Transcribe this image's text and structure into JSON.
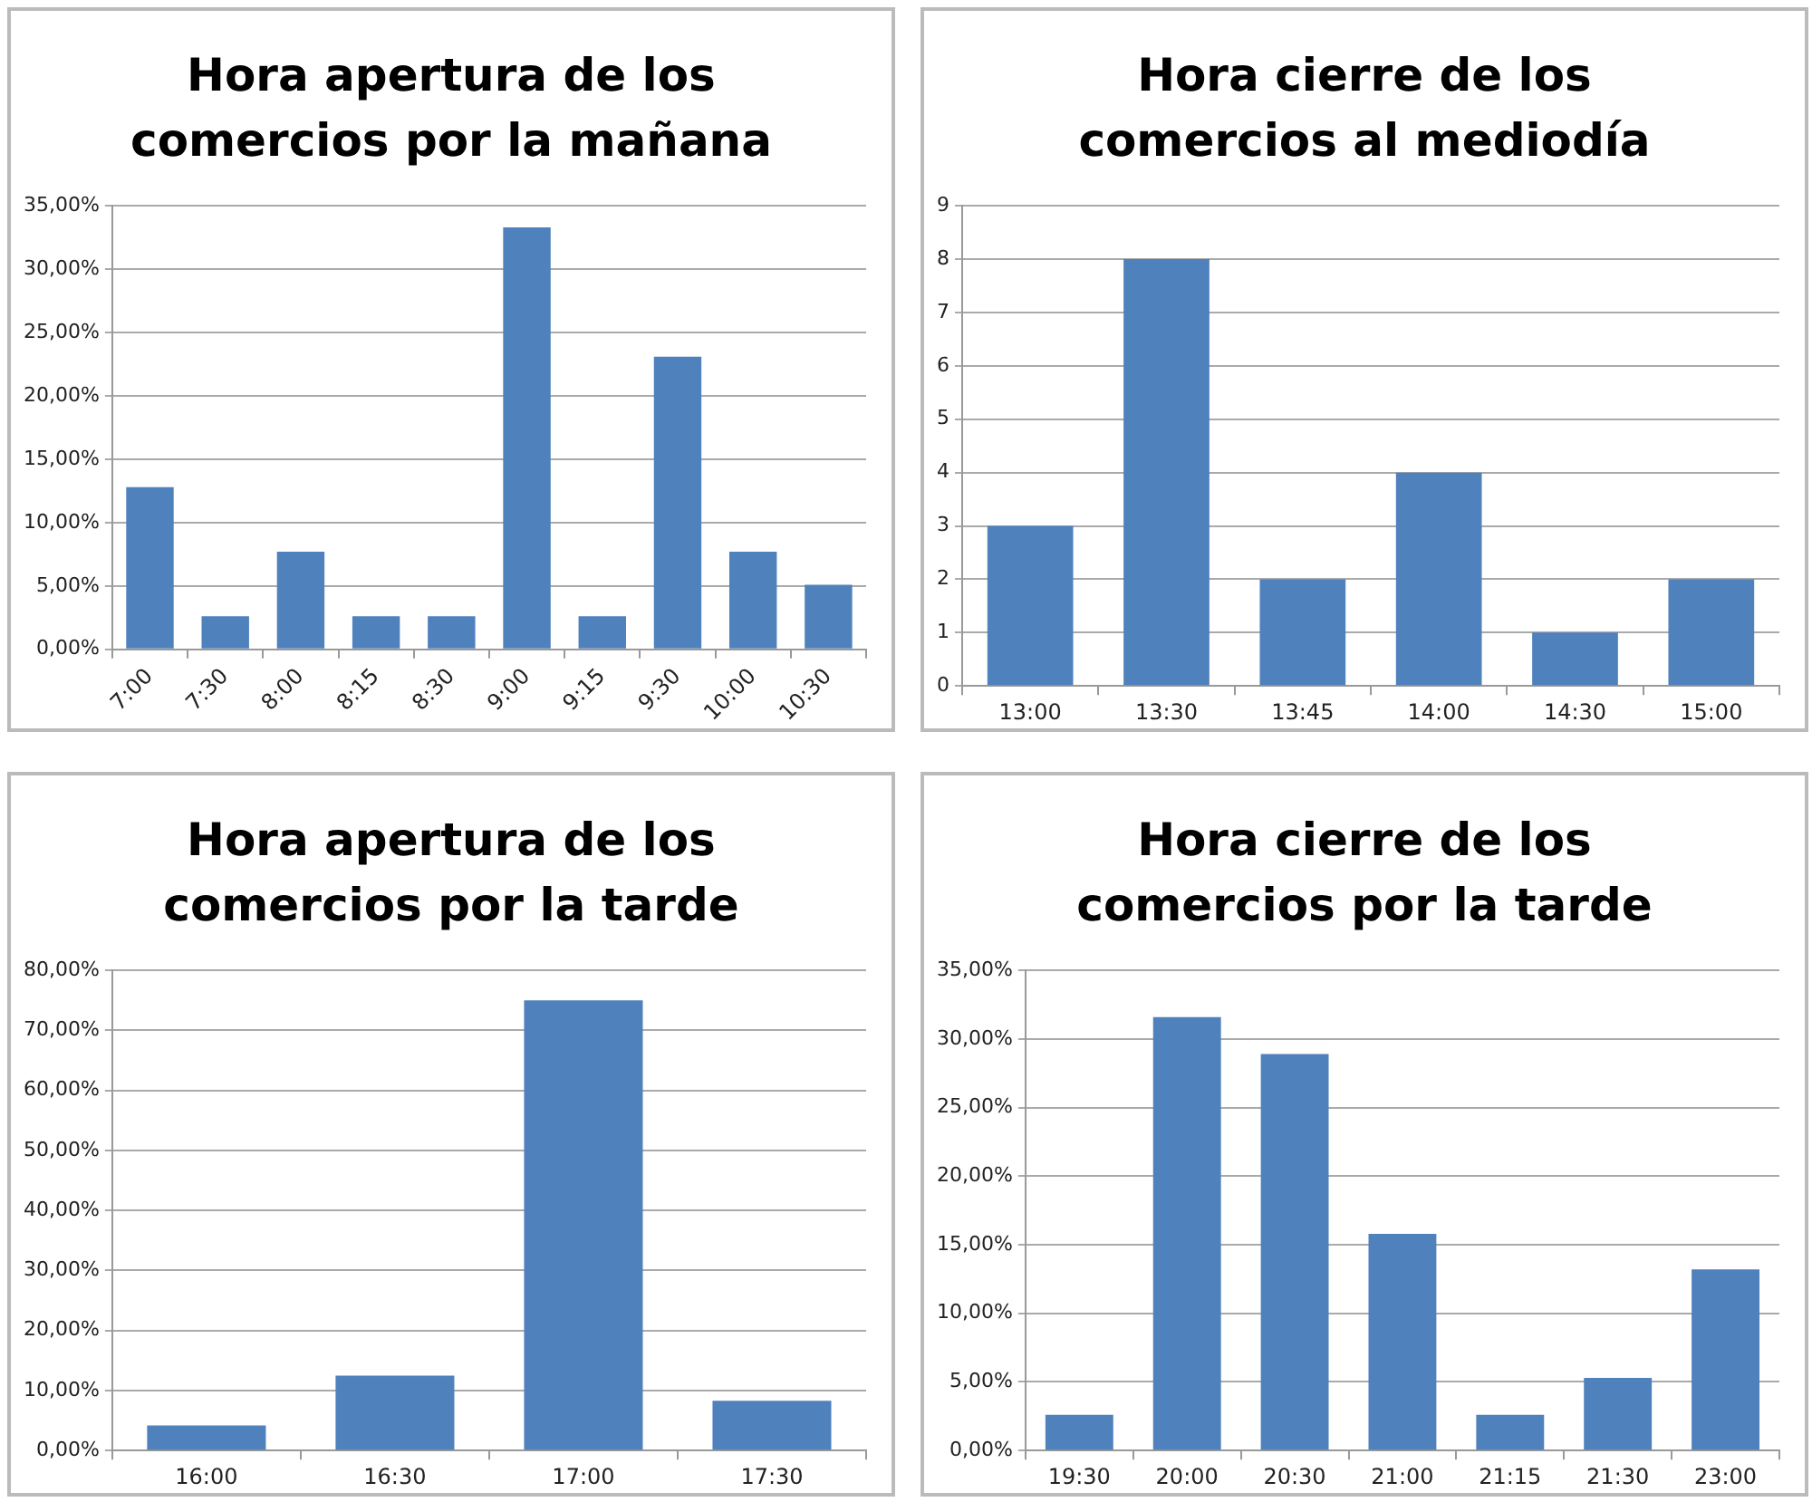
{
  "chart_data": [
    {
      "type": "bar",
      "title": "Hora apertura de los comercios por la mañana",
      "categories": [
        "7:00",
        "7:30",
        "8:00",
        "8:15",
        "8:30",
        "9:00",
        "9:15",
        "9:30",
        "10:00",
        "10:30"
      ],
      "values": [
        12.8,
        2.6,
        7.7,
        2.6,
        2.6,
        33.3,
        2.6,
        23.1,
        7.7,
        5.1
      ],
      "color": "#4f81bd",
      "ylim": [
        0,
        35
      ],
      "yticks": [
        {
          "value": 0,
          "label": "0,00%"
        },
        {
          "value": 5,
          "label": "5,00%"
        },
        {
          "value": 10,
          "label": "10,00%"
        },
        {
          "value": 15,
          "label": "15,00%"
        },
        {
          "value": 20,
          "label": "20,00%"
        },
        {
          "value": 25,
          "label": "25,00%"
        },
        {
          "value": 30,
          "label": "30,00%"
        },
        {
          "value": 35,
          "label": "35,00%"
        }
      ],
      "grid": "y"
    },
    {
      "type": "bar",
      "title": "Hora cierre de los comercios al mediodía",
      "categories": [
        "13:00",
        "13:30",
        "13:45",
        "14:00",
        "14:30",
        "15:00"
      ],
      "values": [
        3,
        8,
        2,
        4,
        1,
        2
      ],
      "color": "#4f81bd",
      "ylim": [
        0,
        9
      ],
      "yticks": [
        0,
        1,
        2,
        3,
        4,
        5,
        6,
        7,
        8,
        9
      ],
      "grid": "y"
    },
    {
      "type": "bar",
      "title": "Hora apertura de los comercios por la tarde",
      "categories": [
        "16:00",
        "16:30",
        "17:00",
        "17:30"
      ],
      "values": [
        4.2,
        12.5,
        75,
        8.3
      ],
      "color": "#4f81bd",
      "ylim": [
        0,
        80
      ],
      "yticks": [
        {
          "value": 0,
          "label": "0,00%"
        },
        {
          "value": 10,
          "label": "10,00%"
        },
        {
          "value": 20,
          "label": "20,00%"
        },
        {
          "value": 30,
          "label": "30,00%"
        },
        {
          "value": 40,
          "label": "40,00%"
        },
        {
          "value": 50,
          "label": "50,00%"
        },
        {
          "value": 60,
          "label": "60,00%"
        },
        {
          "value": 70,
          "label": "70,00%"
        },
        {
          "value": 80,
          "label": "80,00%"
        }
      ],
      "grid": "y"
    },
    {
      "type": "bar",
      "title": "Hora cierre de los comercios por la tarde",
      "categories": [
        "19:30",
        "20:00",
        "20:30",
        "21:00",
        "21:15",
        "21:30",
        "23:00"
      ],
      "values": [
        2.6,
        31.6,
        28.9,
        15.8,
        2.6,
        5.3,
        13.2
      ],
      "color": "#4f81bd",
      "ylim": [
        0,
        35
      ],
      "yticks": [
        {
          "value": 0,
          "label": "0,00%"
        },
        {
          "value": 5,
          "label": "5,00%"
        },
        {
          "value": 10,
          "label": "10,00%"
        },
        {
          "value": 15,
          "label": "15,00%"
        },
        {
          "value": 20,
          "label": "20,00%"
        },
        {
          "value": 25,
          "label": "25,00%"
        },
        {
          "value": 30,
          "label": "30,00%"
        },
        {
          "value": 35,
          "label": "35,00%"
        }
      ],
      "grid": "y"
    }
  ]
}
